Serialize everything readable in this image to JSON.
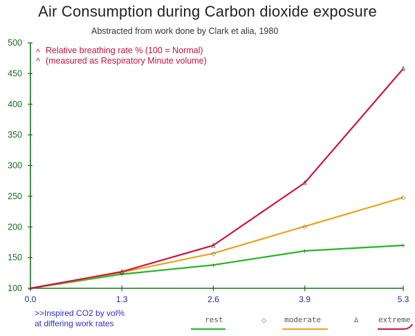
{
  "chart_data": {
    "type": "line",
    "title": "Air Consumption during Carbon dioxide exposure",
    "subtitle": "Abstracted from work done by Clark et alia, 1980",
    "ylabel_lines": [
      "Relative breathing rate  % (100 = Normal)",
      "(measured as Respiratory Minute volume)"
    ],
    "ylabel_marks": [
      "^",
      "^"
    ],
    "xlabel_lines": [
      ">>Inspired CO2 by vol%",
      "at differing work rates"
    ],
    "x": [
      0.0,
      1.3,
      2.6,
      3.9,
      5.3
    ],
    "x_tick_labels": [
      "0.0",
      "1.3",
      "2.6",
      "3.9",
      "5.3"
    ],
    "y_ticks": [
      100,
      150,
      200,
      250,
      300,
      350,
      400,
      450,
      500
    ],
    "xlim": [
      0,
      5.3
    ],
    "ylim": [
      100,
      500
    ],
    "series": [
      {
        "name": "rest",
        "color": "#22b422",
        "marker": "+",
        "values": [
          100,
          123,
          138,
          161,
          170
        ]
      },
      {
        "name": "moderate",
        "color": "#eba21c",
        "marker": "◇",
        "values": [
          100,
          126,
          157,
          201,
          248
        ]
      },
      {
        "name": "extreme",
        "color": "#c8143f",
        "marker": "Δ",
        "values": [
          100,
          127,
          170,
          272,
          458
        ]
      }
    ],
    "legend": [
      {
        "label": "rest",
        "marker": ""
      },
      {
        "label": "moderate",
        "marker": "◇"
      },
      {
        "label": "extreme",
        "marker": "Δ"
      }
    ],
    "axis_color": "#1a6b1a"
  }
}
